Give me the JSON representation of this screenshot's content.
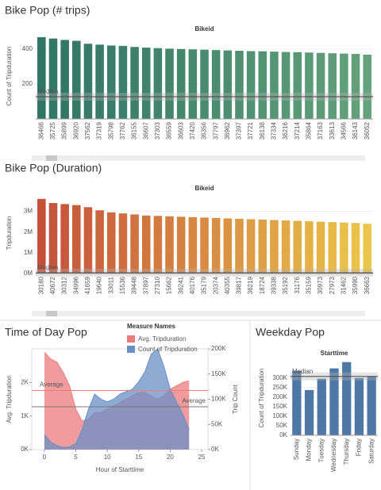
{
  "chart_data": [
    {
      "type": "bar",
      "title": "Bike Pop (# trips)",
      "header": "Bikeid",
      "ylabel": "Count of Tripduration",
      "categories": [
        "36466",
        "35725",
        "35899",
        "36920",
        "37562",
        "37319",
        "35798",
        "37762",
        "36155",
        "36607",
        "37303",
        "36559",
        "36603",
        "37420",
        "36356",
        "37797",
        "36962",
        "37397",
        "37721",
        "36138",
        "37334",
        "36216",
        "37214",
        "35864",
        "37163",
        "33613",
        "34566",
        "36143",
        "36052"
      ],
      "values": [
        468,
        460,
        452,
        447,
        430,
        425,
        420,
        418,
        412,
        408,
        405,
        402,
        400,
        398,
        396,
        394,
        392,
        390,
        388,
        387,
        385,
        383,
        382,
        380,
        378,
        376,
        374,
        372,
        368
      ],
      "color_scale": [
        "#2f7465",
        "#63a27b"
      ],
      "ylim": [
        0,
        490
      ],
      "yticks": [
        200,
        400
      ],
      "reference_lines": [
        {
          "label": "Median",
          "value": 127
        }
      ]
    },
    {
      "type": "bar",
      "title": "Bike Pop (Duration)",
      "header": "Bikeid",
      "ylabel": "Tripduration",
      "categories": [
        "30180",
        "40672",
        "30312",
        "34996",
        "41659",
        "19640",
        "33011",
        "15536",
        "39448",
        "37897",
        "27310",
        "15662",
        "36241",
        "40176",
        "35179",
        "20374",
        "40355",
        "39817",
        "36219",
        "18724",
        "39338",
        "35192",
        "31176",
        "35159",
        "30973",
        "27973",
        "31462",
        "35990",
        "36663"
      ],
      "values": [
        3600000,
        3400000,
        3350000,
        3300000,
        3200000,
        3050000,
        2950000,
        2900000,
        2850000,
        2800000,
        2780000,
        2760000,
        2740000,
        2720000,
        2700000,
        2680000,
        2660000,
        2640000,
        2620000,
        2600000,
        2580000,
        2560000,
        2540000,
        2520000,
        2500000,
        2480000,
        2460000,
        2440000,
        2400000
      ],
      "color_scale": [
        "#c4503a",
        "#ecc64a"
      ],
      "ylim": [
        0,
        3900000
      ],
      "yticks": [
        {
          "value": 0,
          "label": "0M"
        },
        {
          "value": 1000000,
          "label": "1M"
        },
        {
          "value": 2000000,
          "label": "2M"
        },
        {
          "value": 3000000,
          "label": "3M"
        }
      ],
      "reference_lines": [
        {
          "label": "Median",
          "value": 40000
        }
      ]
    },
    {
      "type": "area",
      "title": "Time of Day Pop",
      "xlabel": "Hour of Starttime",
      "ylabel": "Avg. Tripduration",
      "y2label": "Trip Count",
      "legend_title": "Measure Names",
      "x": [
        0,
        1,
        2,
        3,
        4,
        5,
        6,
        7,
        8,
        9,
        10,
        11,
        12,
        13,
        14,
        15,
        16,
        17,
        18,
        19,
        20,
        21,
        22,
        23
      ],
      "series": [
        {
          "name": "Avg. Tripduration",
          "color": "#ec7a7c",
          "values": [
            2900,
            2700,
            2600,
            2300,
            1900,
            1200,
            850,
            900,
            1100,
            1100,
            1200,
            1300,
            1400,
            1500,
            1600,
            1700,
            1700,
            1600,
            1500,
            1600,
            1800,
            1900,
            2000,
            2050
          ]
        },
        {
          "name": "Count of Tripduration",
          "color": "#6a8fc6",
          "axis": "y2",
          "values": [
            30000,
            15000,
            8000,
            4000,
            5000,
            12000,
            40000,
            80000,
            110000,
            100000,
            95000,
            100000,
            110000,
            115000,
            120000,
            135000,
            155000,
            190000,
            200000,
            165000,
            120000,
            95000,
            70000,
            40000
          ]
        }
      ],
      "xlim": [
        -2,
        26
      ],
      "xticks": [
        0,
        5,
        10,
        15,
        20,
        25
      ],
      "ylim": [
        0,
        3000
      ],
      "yticks": [
        {
          "value": 0,
          "label": "0K"
        },
        {
          "value": 1000,
          "label": "1K"
        },
        {
          "value": 2000,
          "label": "2K"
        }
      ],
      "y2lim": [
        0,
        200000
      ],
      "y2ticks": [
        {
          "value": 0,
          "label": "0K"
        },
        {
          "value": 50000,
          "label": "50K"
        },
        {
          "value": 100000,
          "label": "100K"
        },
        {
          "value": 150000,
          "label": "150K"
        },
        {
          "value": 200000,
          "label": "200K"
        }
      ],
      "reference_lines": [
        {
          "label": "Average",
          "value": 1760,
          "color": "#ec7a7c"
        },
        {
          "label": "Average",
          "value": 85000,
          "axis": "y2",
          "color": "#777777"
        }
      ]
    },
    {
      "type": "bar",
      "title": "Weekday Pop",
      "header": "Starttime",
      "ylabel": "Count of Tripduration",
      "categories": [
        "Sunday",
        "Monday",
        "Tuesday",
        "Wednesday",
        "Thursday",
        "Friday",
        "Saturday"
      ],
      "values": [
        337000,
        237000,
        296000,
        350000,
        383000,
        300000,
        308000
      ],
      "color_scale": [
        "#4e79a7",
        "#4e79a7"
      ],
      "ylim": [
        0,
        390000
      ],
      "yticks": [
        {
          "value": 0,
          "label": "0K"
        },
        {
          "value": 50000,
          "label": "50K"
        },
        {
          "value": 100000,
          "label": "100K"
        },
        {
          "value": 150000,
          "label": "150K"
        },
        {
          "value": 200000,
          "label": "200K"
        },
        {
          "value": 250000,
          "label": "250K"
        },
        {
          "value": 300000,
          "label": "300K"
        }
      ],
      "reference_lines": [
        {
          "label": "Median",
          "value": 308000
        }
      ]
    }
  ]
}
